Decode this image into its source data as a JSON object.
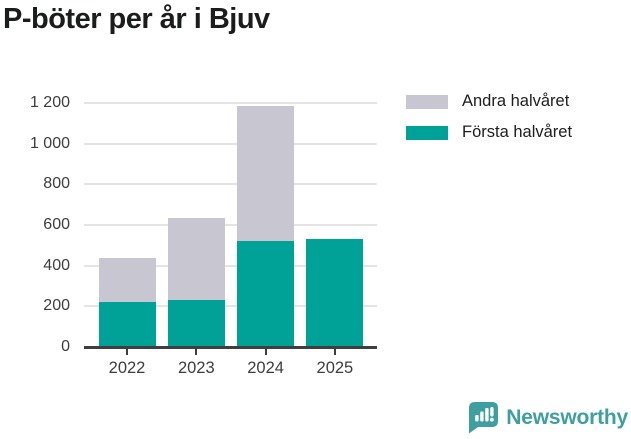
{
  "title": "P-böter per år i Bjuv",
  "legend": {
    "items": [
      {
        "label": "Andra halvåret",
        "color": "#c8c6d0"
      },
      {
        "label": "Första halvåret",
        "color": "#00a196"
      }
    ]
  },
  "footer": {
    "brand": "Newsworthy",
    "brand_color": "#3f9fa0",
    "logo_icon": "newsworthy-bar-chart-bubble-icon"
  },
  "colors": {
    "first_half": "#00a196",
    "second_half": "#c8c6d0",
    "axis": "#3f3f3f",
    "gridline": "#e4e4e4",
    "tick_text": "#3d3d3d",
    "title_text": "#1a1d1b"
  },
  "chart_data": {
    "type": "bar",
    "stacked": true,
    "title": "P-böter per år i Bjuv",
    "xlabel": "",
    "ylabel": "",
    "categories": [
      "2022",
      "2023",
      "2024",
      "2025"
    ],
    "series": [
      {
        "name": "Första halvåret",
        "color": "#00a196",
        "values": [
          220,
          230,
          520,
          530
        ]
      },
      {
        "name": "Andra halvåret",
        "color": "#c8c6d0",
        "values": [
          220,
          405,
          665,
          0
        ]
      }
    ],
    "totals": [
      440,
      635,
      1185,
      530
    ],
    "ylim": [
      0,
      1200
    ],
    "yticks": [
      0,
      200,
      400,
      600,
      800,
      1000,
      1200
    ],
    "ytick_labels": [
      "0",
      "200",
      "400",
      "600",
      "800",
      "1 000",
      "1 200"
    ],
    "grid": true,
    "legend_position": "top-right"
  }
}
